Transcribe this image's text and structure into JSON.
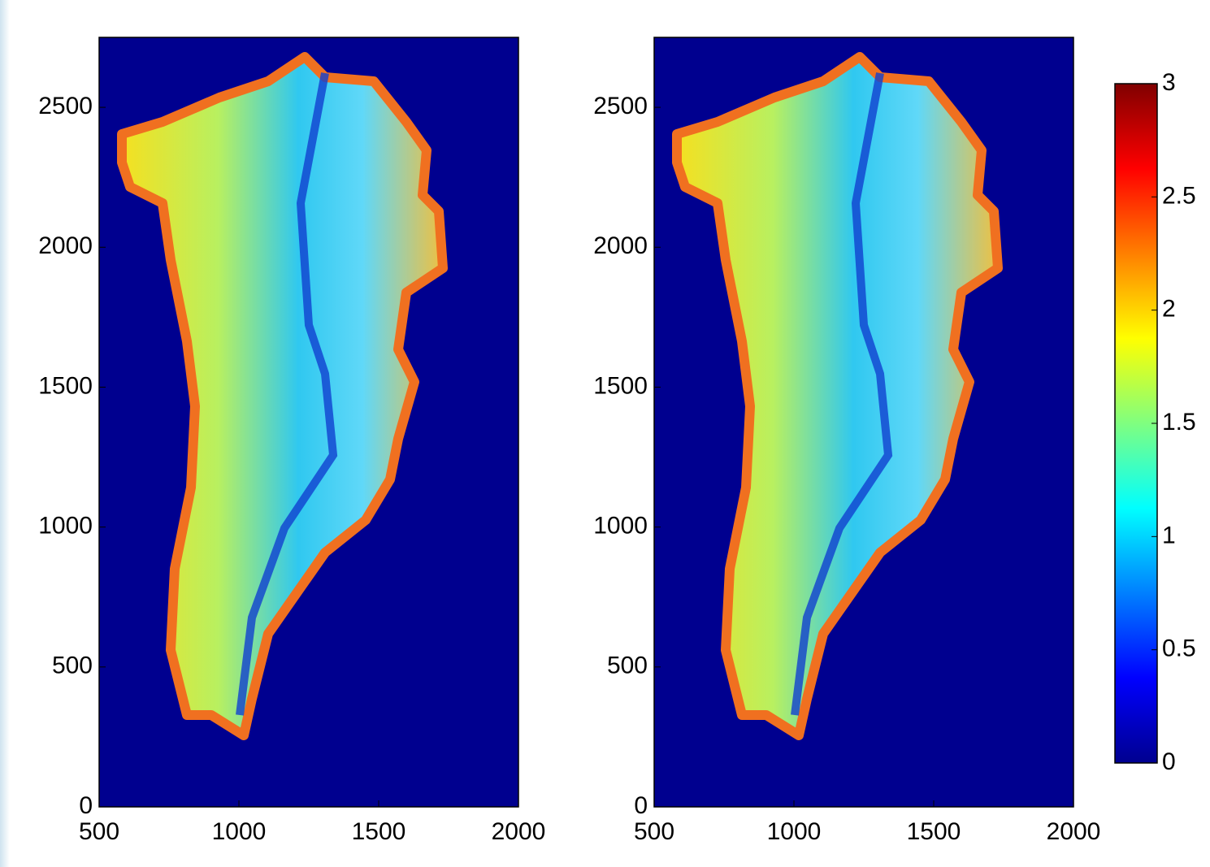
{
  "chart_data": [
    {
      "type": "heatmap",
      "colormap": "jet",
      "xlim": [
        500,
        2000
      ],
      "xticks": [
        500,
        1000,
        1500,
        2000
      ],
      "ylim": [
        0,
        2750
      ],
      "yticks": [
        0,
        500,
        1000,
        1500,
        2000,
        2500
      ]
    },
    {
      "type": "heatmap",
      "colormap": "jet",
      "xlim": [
        500,
        2000
      ],
      "xticks": [
        500,
        1000,
        1500,
        2000
      ],
      "ylim": [
        0,
        2750
      ],
      "yticks": [
        0,
        500,
        1000,
        1500,
        2000,
        2500
      ],
      "colorbar": {
        "lim": [
          0,
          3
        ],
        "ticks": [
          0,
          0.5,
          1,
          1.5,
          2,
          2.5,
          3
        ]
      }
    }
  ]
}
